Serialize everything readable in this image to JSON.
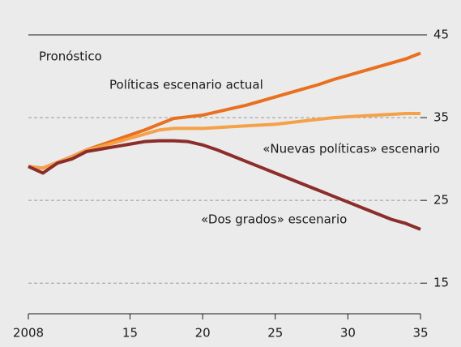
{
  "chart_data": {
    "type": "line",
    "annotation": "Pronóstico",
    "x": [
      2008,
      2009,
      2010,
      2011,
      2012,
      2013,
      2014,
      2015,
      2016,
      2017,
      2018,
      2019,
      2020,
      2021,
      2022,
      2023,
      2024,
      2025,
      2026,
      2027,
      2028,
      2029,
      2030,
      2031,
      2032,
      2033,
      2034,
      2035
    ],
    "series": [
      {
        "name": "Políticas escenario actual",
        "color": "#e8701f",
        "values": [
          29.1,
          28.9,
          29.6,
          30.3,
          31.1,
          31.7,
          32.3,
          32.9,
          33.5,
          34.2,
          34.9,
          35.1,
          35.3,
          35.7,
          36.1,
          36.5,
          37.0,
          37.5,
          38.0,
          38.5,
          39.0,
          39.6,
          40.1,
          40.6,
          41.1,
          41.6,
          42.1,
          42.8
        ]
      },
      {
        "name": "«Nuevas políticas» escenario",
        "color": "#f5a14a",
        "values": [
          29.1,
          28.9,
          29.6,
          30.3,
          31.1,
          31.5,
          32.0,
          32.5,
          33.0,
          33.5,
          33.7,
          33.7,
          33.7,
          33.8,
          33.9,
          34.0,
          34.1,
          34.2,
          34.4,
          34.6,
          34.8,
          35.0,
          35.1,
          35.2,
          35.3,
          35.4,
          35.5,
          35.5
        ]
      },
      {
        "name": "«Dos grados» escenario",
        "color": "#8b2d2a",
        "values": [
          29.1,
          28.3,
          29.5,
          30.0,
          30.9,
          31.2,
          31.5,
          31.8,
          32.1,
          32.2,
          32.2,
          32.1,
          31.7,
          31.1,
          30.4,
          29.7,
          29.0,
          28.3,
          27.6,
          26.9,
          26.2,
          25.5,
          24.8,
          24.1,
          23.4,
          22.7,
          22.2,
          21.5
        ]
      }
    ],
    "xlim": [
      2008,
      2035
    ],
    "xticks": [
      2008,
      {
        "value": 2015,
        "label": "15"
      },
      {
        "value": 2020,
        "label": "20"
      },
      {
        "value": 2025,
        "label": "25"
      },
      {
        "value": 2030,
        "label": "30"
      },
      {
        "value": 2035,
        "label": "35"
      }
    ],
    "ylim": [
      11.3,
      45
    ],
    "yticks": [
      15,
      25,
      35,
      45
    ],
    "grid": true
  }
}
